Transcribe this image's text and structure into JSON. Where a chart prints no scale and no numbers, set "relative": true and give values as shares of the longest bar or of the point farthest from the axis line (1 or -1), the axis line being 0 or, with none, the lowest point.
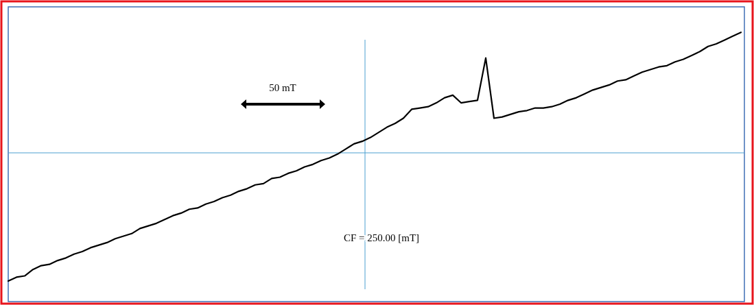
{
  "chart_data": {
    "type": "line",
    "relative": true,
    "marker": "none",
    "line_style": "solid",
    "categories": [
      null,
      null,
      null,
      null,
      null,
      null,
      null,
      null,
      null,
      null,
      null,
      null,
      null,
      null,
      null,
      null,
      null,
      null,
      null,
      null,
      null,
      null,
      null,
      null,
      null,
      null,
      null,
      null,
      null,
      null,
      null,
      null,
      null,
      null,
      null,
      null,
      null,
      null,
      null,
      null,
      null,
      null,
      null,
      null,
      null,
      null,
      null,
      null,
      null,
      null,
      null,
      null,
      null,
      null,
      null,
      null,
      null,
      null,
      null,
      null,
      null,
      null,
      null,
      null,
      null,
      null,
      null,
      null,
      null,
      null,
      null,
      null,
      null,
      null,
      null,
      null,
      null,
      null,
      null,
      null,
      null,
      null,
      null,
      null,
      null,
      null,
      null,
      null,
      null,
      null
    ],
    "series": [
      {
        "color": "#000000",
        "values": [
          -1,
          -0.97,
          -0.96,
          -0.91,
          -0.88,
          -0.87,
          -0.84,
          -0.82,
          -0.79,
          -0.77,
          -0.74,
          -0.72,
          -0.7,
          -0.67,
          -0.65,
          -0.63,
          -0.59,
          -0.57,
          -0.55,
          -0.52,
          -0.49,
          -0.47,
          -0.44,
          -0.43,
          -0.4,
          -0.38,
          -0.35,
          -0.33,
          -0.3,
          -0.28,
          -0.25,
          -0.24,
          -0.2,
          -0.19,
          -0.16,
          -0.14,
          -0.11,
          -0.09,
          -0.06,
          -0.04,
          -0.01,
          0.03,
          0.07,
          0.09,
          0.12,
          0.16,
          0.2,
          0.23,
          0.27,
          0.34,
          0.35,
          0.36,
          0.39,
          0.43,
          0.45,
          0.39,
          0.4,
          0.41,
          0.74,
          0.27,
          0.28,
          0.3,
          0.32,
          0.33,
          0.35,
          0.35,
          0.36,
          0.38,
          0.41,
          0.43,
          0.46,
          0.49,
          0.51,
          0.53,
          0.56,
          0.57,
          0.6,
          0.63,
          0.65,
          0.67,
          0.68,
          0.71,
          0.73,
          0.76,
          0.79,
          0.83,
          0.85,
          0.88,
          0.91,
          0.94
        ]
      }
    ],
    "ref_lines": [
      {
        "axis": "y",
        "value": 0,
        "color": "#4a9fd0"
      }
    ],
    "annotations": [
      "50 mT",
      "CF = 250.00 [mT]"
    ]
  }
}
